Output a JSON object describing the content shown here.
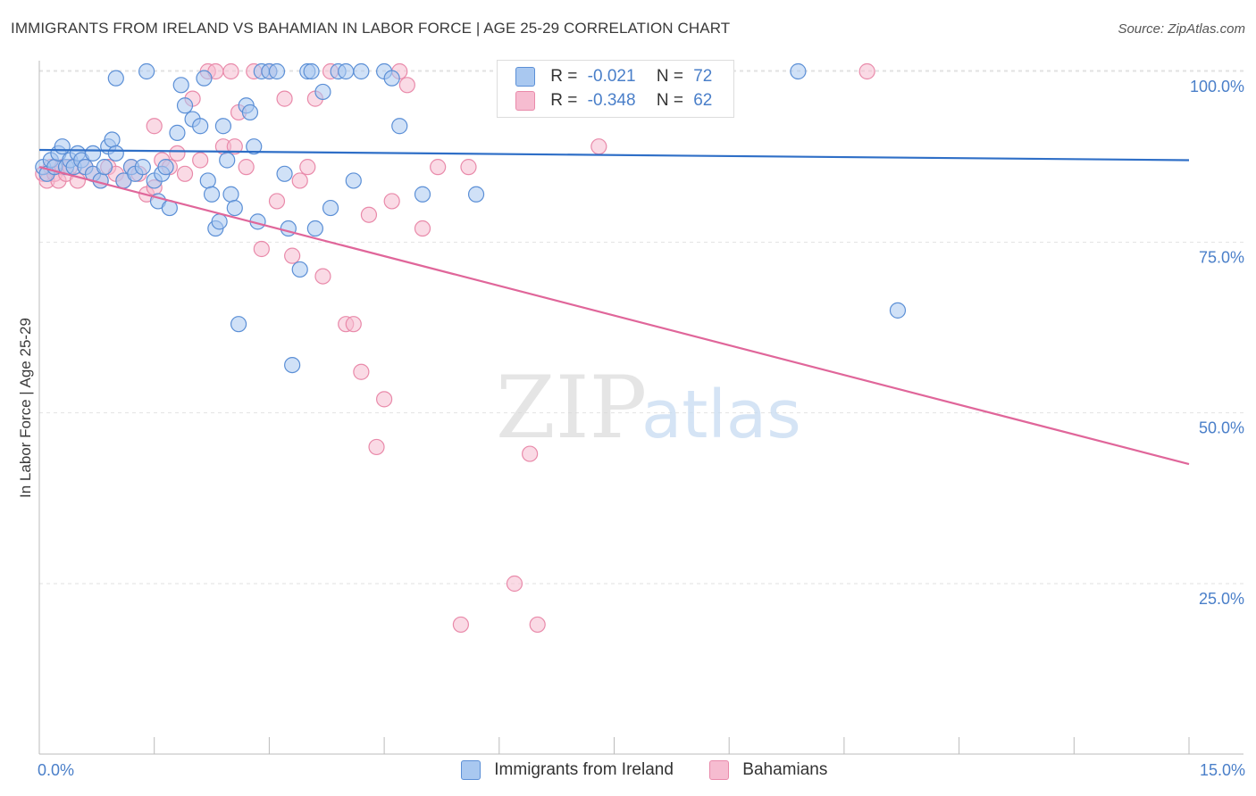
{
  "header": {
    "title": "IMMIGRANTS FROM IRELAND VS BAHAMIAN IN LABOR FORCE | AGE 25-29 CORRELATION CHART",
    "source": "Source: ZipAtlas.com"
  },
  "watermark": {
    "zip": "ZIP",
    "atlas": "atlas"
  },
  "legend": {
    "r_label": "R =",
    "n_label": "N =",
    "series": [
      {
        "r": "-0.021",
        "n": "72"
      },
      {
        "r": "-0.348",
        "n": "62"
      }
    ]
  },
  "colors": {
    "ireland_fill": "#a9c8f0",
    "ireland_stroke": "#5b8fd6",
    "ireland_line": "#2f6fc7",
    "bahamas_fill": "#f6bcd0",
    "bahamas_stroke": "#e98aaa",
    "bahamas_line": "#e0669a",
    "tick_text": "#4a7fc9",
    "grid": "#e2e2e2"
  },
  "chart_data": {
    "type": "scatter",
    "xlabel": "",
    "ylabel": "In Labor Force | Age 25-29",
    "xlim": [
      0,
      15
    ],
    "ylim": [
      0,
      103
    ],
    "x_tick_labels": [
      {
        "value": 0,
        "label": "0.0%"
      },
      {
        "value": 15,
        "label": "15.0%"
      }
    ],
    "x_minor_ticks": [
      1.5,
      3,
      4.5,
      6,
      7.5,
      9,
      10.5,
      12,
      13.5,
      15
    ],
    "y_ticks": [
      {
        "value": 25,
        "label": "25.0%"
      },
      {
        "value": 50,
        "label": "50.0%"
      },
      {
        "value": 75,
        "label": "75.0%"
      },
      {
        "value": 100,
        "label": "100.0%"
      }
    ],
    "grid": true,
    "legend_position": "top-center",
    "series": [
      {
        "name": "Immigrants from Ireland",
        "trend": {
          "x": [
            0,
            15
          ],
          "y": [
            88.5,
            87.0
          ]
        },
        "points": [
          [
            0.05,
            86
          ],
          [
            0.1,
            85
          ],
          [
            0.15,
            87
          ],
          [
            0.2,
            86
          ],
          [
            0.25,
            88
          ],
          [
            0.3,
            89
          ],
          [
            0.35,
            86
          ],
          [
            0.4,
            87
          ],
          [
            0.45,
            86
          ],
          [
            0.5,
            88
          ],
          [
            0.55,
            87
          ],
          [
            0.6,
            86
          ],
          [
            0.7,
            85
          ],
          [
            0.8,
            84
          ],
          [
            0.85,
            86
          ],
          [
            0.9,
            89
          ],
          [
            0.95,
            90
          ],
          [
            1.0,
            88
          ],
          [
            1.1,
            84
          ],
          [
            1.2,
            86
          ],
          [
            1.25,
            85
          ],
          [
            1.35,
            86
          ],
          [
            1.5,
            84
          ],
          [
            1.6,
            85
          ],
          [
            1.65,
            86
          ],
          [
            1.55,
            81
          ],
          [
            1.7,
            80
          ],
          [
            1.8,
            91
          ],
          [
            1.85,
            98
          ],
          [
            1.9,
            95
          ],
          [
            2.0,
            93
          ],
          [
            2.1,
            92
          ],
          [
            2.15,
            99
          ],
          [
            2.2,
            84
          ],
          [
            2.25,
            82
          ],
          [
            2.3,
            77
          ],
          [
            2.35,
            78
          ],
          [
            2.4,
            92
          ],
          [
            2.45,
            87
          ],
          [
            2.5,
            82
          ],
          [
            2.55,
            80
          ],
          [
            2.6,
            63
          ],
          [
            2.7,
            95
          ],
          [
            2.75,
            94
          ],
          [
            2.8,
            89
          ],
          [
            2.85,
            78
          ],
          [
            2.9,
            100
          ],
          [
            3.0,
            100
          ],
          [
            3.1,
            100
          ],
          [
            3.2,
            85
          ],
          [
            3.25,
            77
          ],
          [
            3.3,
            57
          ],
          [
            3.4,
            71
          ],
          [
            3.5,
            100
          ],
          [
            3.55,
            100
          ],
          [
            3.6,
            77
          ],
          [
            3.7,
            97
          ],
          [
            3.8,
            80
          ],
          [
            3.9,
            100
          ],
          [
            4.0,
            100
          ],
          [
            4.1,
            84
          ],
          [
            4.2,
            100
          ],
          [
            4.5,
            100
          ],
          [
            4.6,
            99
          ],
          [
            4.7,
            92
          ],
          [
            5.0,
            82
          ],
          [
            5.7,
            82
          ],
          [
            9.9,
            100
          ],
          [
            11.2,
            65
          ],
          [
            1.0,
            99
          ],
          [
            1.4,
            100
          ],
          [
            0.7,
            88
          ]
        ]
      },
      {
        "name": "Bahamians",
        "trend": {
          "x": [
            0,
            15
          ],
          "y": [
            86.0,
            42.5
          ]
        },
        "points": [
          [
            0.05,
            85
          ],
          [
            0.1,
            84
          ],
          [
            0.15,
            86
          ],
          [
            0.2,
            85
          ],
          [
            0.25,
            84
          ],
          [
            0.3,
            86
          ],
          [
            0.35,
            85
          ],
          [
            0.4,
            86
          ],
          [
            0.5,
            84
          ],
          [
            0.6,
            86
          ],
          [
            0.7,
            85
          ],
          [
            0.8,
            84
          ],
          [
            0.9,
            86
          ],
          [
            1.0,
            85
          ],
          [
            1.1,
            84
          ],
          [
            1.2,
            86
          ],
          [
            1.3,
            85
          ],
          [
            1.4,
            82
          ],
          [
            1.5,
            83
          ],
          [
            1.6,
            87
          ],
          [
            1.7,
            86
          ],
          [
            1.8,
            88
          ],
          [
            1.9,
            85
          ],
          [
            2.0,
            96
          ],
          [
            2.1,
            87
          ],
          [
            2.2,
            100
          ],
          [
            2.3,
            100
          ],
          [
            2.4,
            89
          ],
          [
            2.5,
            100
          ],
          [
            2.55,
            89
          ],
          [
            2.6,
            94
          ],
          [
            2.7,
            86
          ],
          [
            2.8,
            100
          ],
          [
            2.9,
            74
          ],
          [
            3.0,
            100
          ],
          [
            3.1,
            81
          ],
          [
            3.2,
            96
          ],
          [
            3.3,
            73
          ],
          [
            3.4,
            84
          ],
          [
            3.5,
            86
          ],
          [
            3.6,
            96
          ],
          [
            3.7,
            70
          ],
          [
            3.8,
            100
          ],
          [
            4.0,
            63
          ],
          [
            4.1,
            63
          ],
          [
            4.2,
            56
          ],
          [
            4.3,
            79
          ],
          [
            4.4,
            45
          ],
          [
            4.5,
            52
          ],
          [
            4.6,
            81
          ],
          [
            4.7,
            100
          ],
          [
            4.8,
            98
          ],
          [
            5.0,
            77
          ],
          [
            5.2,
            86
          ],
          [
            5.5,
            19
          ],
          [
            5.6,
            86
          ],
          [
            6.2,
            25
          ],
          [
            6.4,
            44
          ],
          [
            6.5,
            19
          ],
          [
            7.3,
            89
          ],
          [
            10.8,
            100
          ],
          [
            1.5,
            92
          ]
        ]
      }
    ]
  }
}
